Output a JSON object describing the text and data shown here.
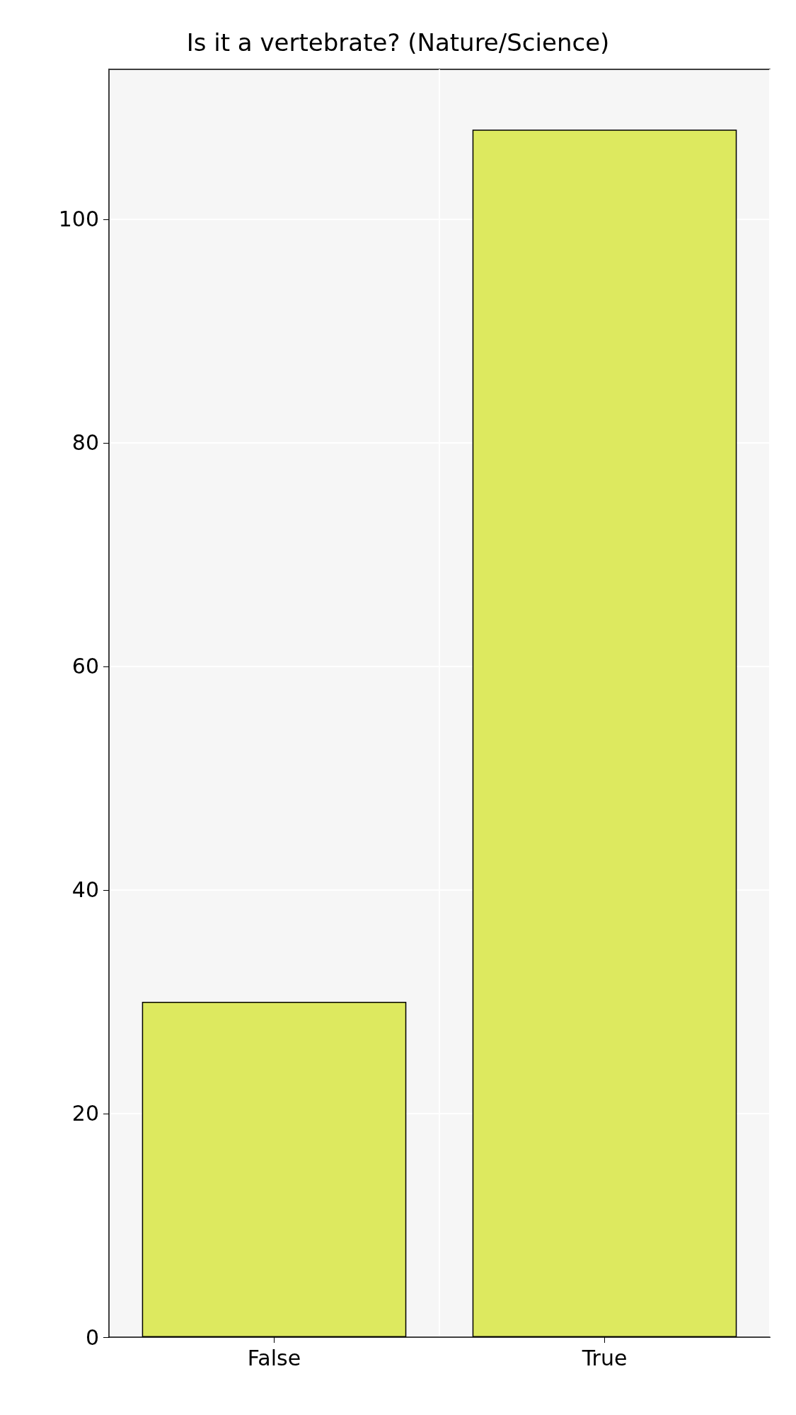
{
  "chart_data": {
    "type": "bar",
    "title": "Is it a vertebrate? (Nature/Science)",
    "categories": [
      "False",
      "True"
    ],
    "values": [
      30,
      108
    ],
    "color": "#dde95f",
    "ylim": [
      0,
      113.4
    ],
    "yticks": [
      0,
      20,
      40,
      60,
      80,
      100
    ],
    "grid": true
  }
}
